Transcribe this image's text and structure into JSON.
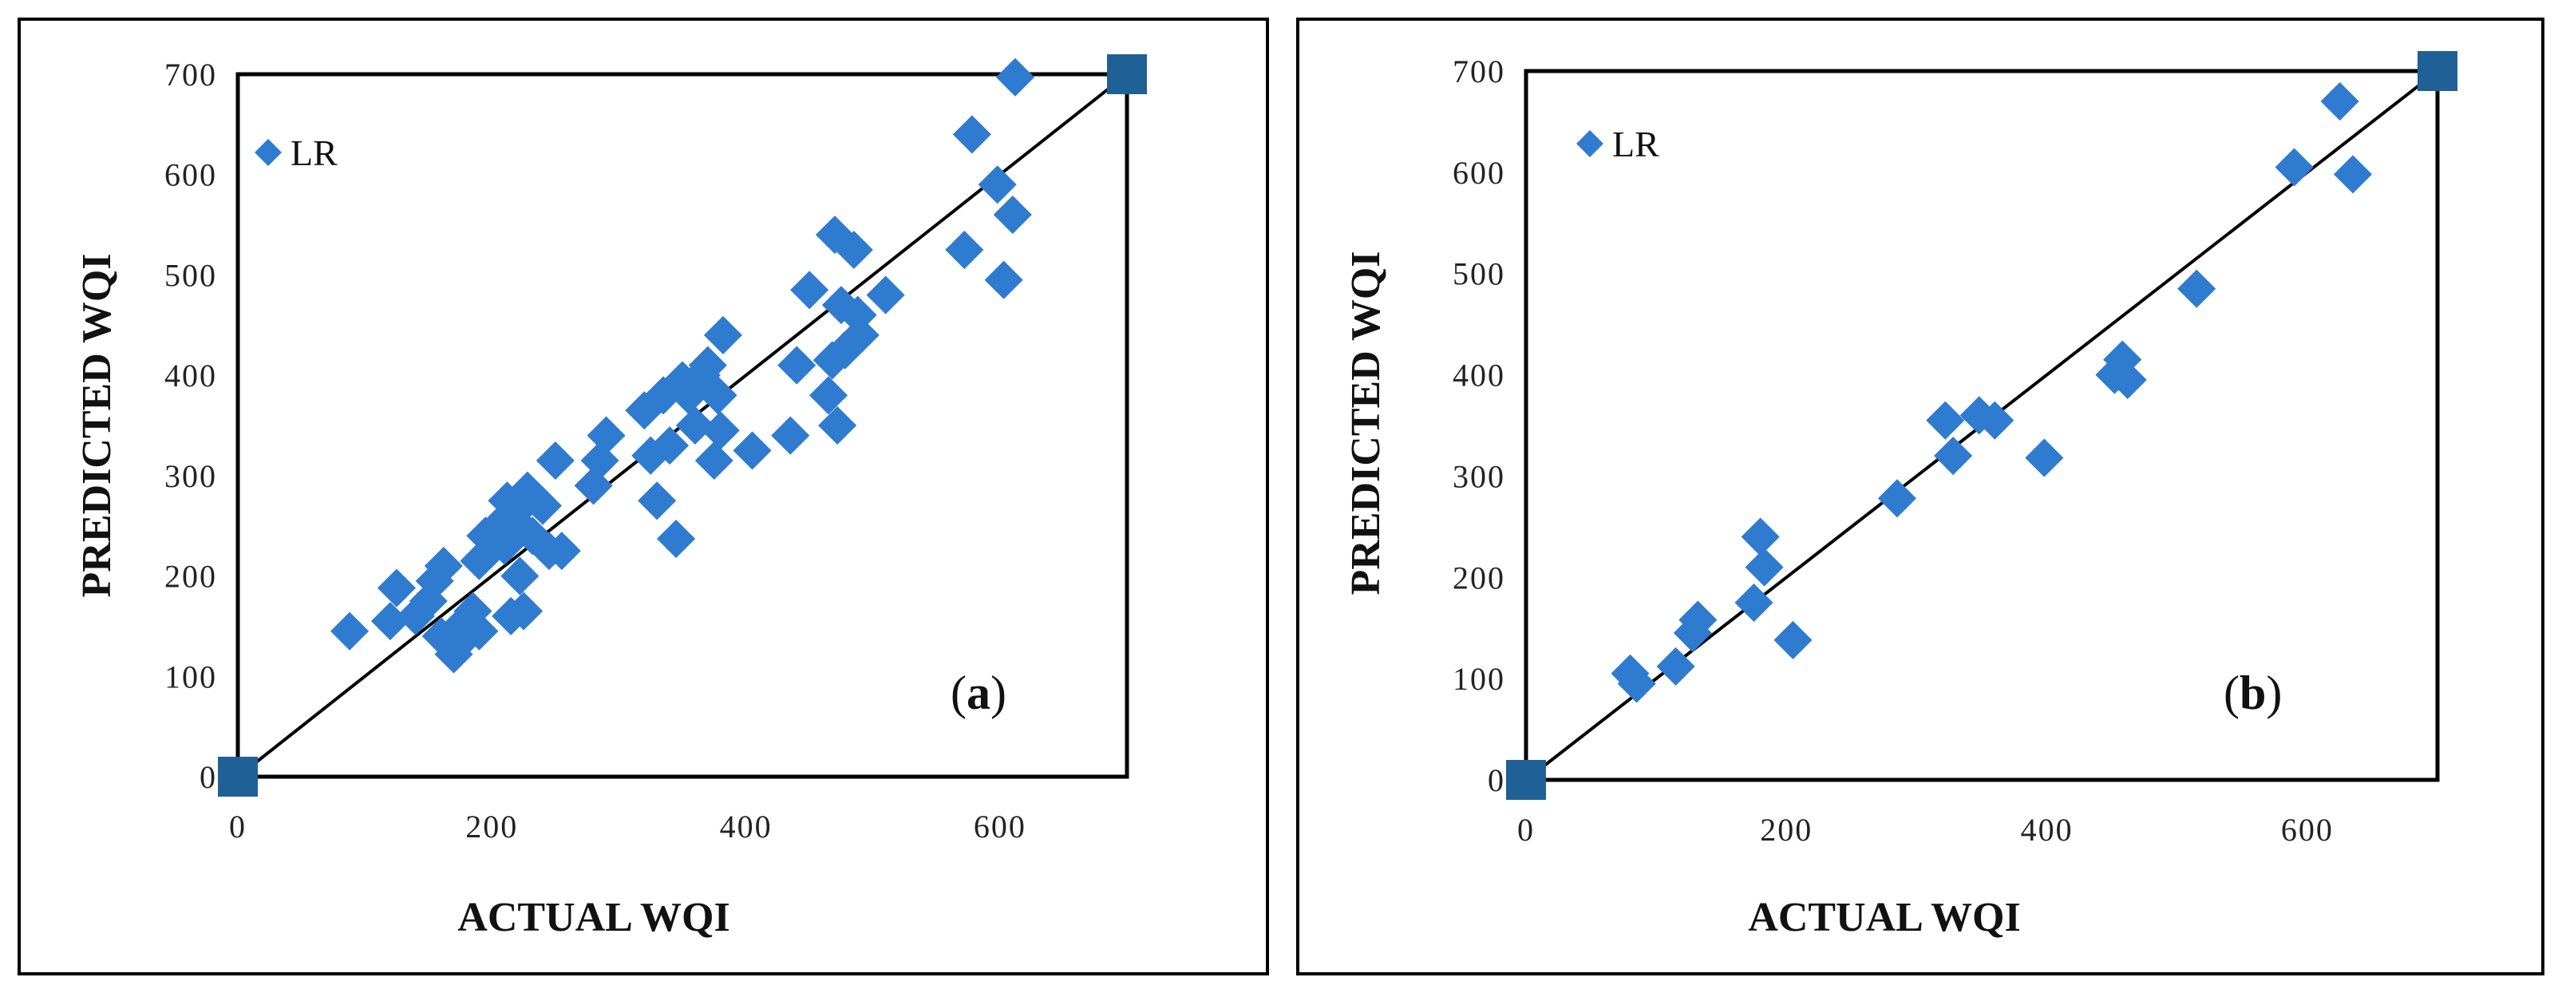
{
  "colors": {
    "point": "#2E7BD0",
    "endpoint": "#1F6096",
    "line": "#000000"
  },
  "chart_data": [
    {
      "id": "a",
      "type": "scatter",
      "panel_label": "a",
      "xlabel": "ACTUAL WQI",
      "ylabel": "PREDICTED WQI",
      "xlim": [
        0,
        700
      ],
      "ylim": [
        0,
        700
      ],
      "xticks": [
        0,
        200,
        400,
        600
      ],
      "yticks": [
        0,
        100,
        200,
        300,
        400,
        500,
        600,
        700
      ],
      "legend": [
        "LR"
      ],
      "legend_position": "top-left",
      "reference_line": [
        [
          0,
          0
        ],
        [
          700,
          700
        ]
      ],
      "series": [
        {
          "name": "LR",
          "points": [
            [
              88,
              145
            ],
            [
              120,
              155
            ],
            [
              125,
              188
            ],
            [
              140,
              160
            ],
            [
              150,
              175
            ],
            [
              155,
              195
            ],
            [
              160,
              140
            ],
            [
              162,
              210
            ],
            [
              168,
              130
            ],
            [
              170,
              122
            ],
            [
              175,
              150
            ],
            [
              180,
              140
            ],
            [
              185,
              165
            ],
            [
              190,
              145
            ],
            [
              190,
              215
            ],
            [
              195,
              240
            ],
            [
              198,
              225
            ],
            [
              205,
              250
            ],
            [
              210,
              230
            ],
            [
              212,
              275
            ],
            [
              215,
              160
            ],
            [
              218,
              255
            ],
            [
              220,
              265
            ],
            [
              222,
              200
            ],
            [
              225,
              165
            ],
            [
              228,
              285
            ],
            [
              232,
              240
            ],
            [
              236,
              275
            ],
            [
              240,
              270
            ],
            [
              245,
              225
            ],
            [
              250,
              315
            ],
            [
              255,
              225
            ],
            [
              280,
              290
            ],
            [
              285,
              315
            ],
            [
              290,
              340
            ],
            [
              320,
              365
            ],
            [
              325,
              320
            ],
            [
              330,
              275
            ],
            [
              335,
              380
            ],
            [
              340,
              330
            ],
            [
              345,
              237
            ],
            [
              350,
              395
            ],
            [
              355,
              380
            ],
            [
              360,
              350
            ],
            [
              365,
              400
            ],
            [
              370,
              410
            ],
            [
              375,
              315
            ],
            [
              378,
              380
            ],
            [
              380,
              345
            ],
            [
              382,
              440
            ],
            [
              405,
              325
            ],
            [
              435,
              340
            ],
            [
              440,
              410
            ],
            [
              450,
              485
            ],
            [
              465,
              380
            ],
            [
              468,
              415
            ],
            [
              470,
              540
            ],
            [
              472,
              350
            ],
            [
              475,
              470
            ],
            [
              478,
              425
            ],
            [
              485,
              525
            ],
            [
              488,
              460
            ],
            [
              490,
              440
            ],
            [
              510,
              480
            ],
            [
              572,
              525
            ],
            [
              578,
              640
            ],
            [
              598,
              590
            ],
            [
              603,
              495
            ],
            [
              610,
              560
            ],
            [
              612,
              697
            ]
          ]
        }
      ],
      "endpoints": [
        [
          0,
          0
        ],
        [
          700,
          700
        ]
      ]
    },
    {
      "id": "b",
      "type": "scatter",
      "panel_label": "b",
      "xlabel": "ACTUAL WQI",
      "ylabel": "PREDICTED WQI",
      "xlim": [
        0,
        700
      ],
      "ylim": [
        0,
        700
      ],
      "xticks": [
        0,
        200,
        400,
        600
      ],
      "yticks": [
        0,
        100,
        200,
        300,
        400,
        500,
        600,
        700
      ],
      "legend": [
        "LR"
      ],
      "legend_position": "top-left",
      "reference_line": [
        [
          0,
          0
        ],
        [
          700,
          700
        ]
      ],
      "series": [
        {
          "name": "LR",
          "points": [
            [
              80,
              105
            ],
            [
              85,
              95
            ],
            [
              115,
              112
            ],
            [
              128,
              145
            ],
            [
              132,
              158
            ],
            [
              175,
              175
            ],
            [
              180,
              240
            ],
            [
              183,
              210
            ],
            [
              205,
              138
            ],
            [
              285,
              278
            ],
            [
              322,
              355
            ],
            [
              328,
              320
            ],
            [
              348,
              360
            ],
            [
              360,
              355
            ],
            [
              398,
              318
            ],
            [
              452,
              400
            ],
            [
              458,
              415
            ],
            [
              462,
              395
            ],
            [
              515,
              485
            ],
            [
              590,
              605
            ],
            [
              625,
              670
            ],
            [
              635,
              598
            ]
          ]
        }
      ],
      "endpoints": [
        [
          0,
          0
        ],
        [
          700,
          700
        ]
      ]
    }
  ]
}
